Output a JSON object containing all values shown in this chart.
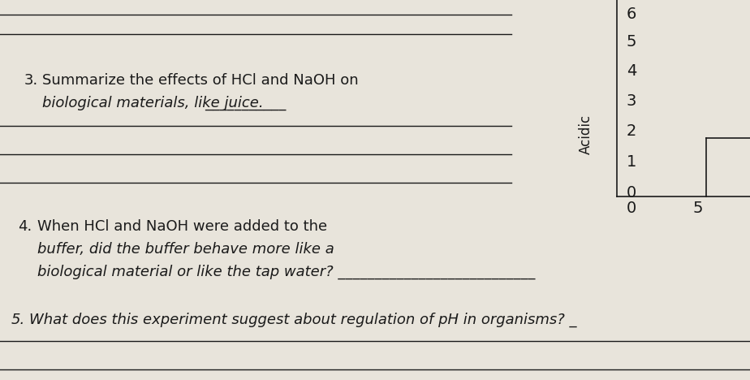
{
  "background_color": "#d6cfc2",
  "panel_color": "#e8e4db",
  "text_color": "#1a1a1a",
  "q3_number": "3.",
  "q3_text_line1": "Summarize the effects of HCl and NaOH on",
  "q3_text_line2_plain": "biological materials, like juice. ",
  "q3_text_line2_underline": "___________",
  "q4_number": "4.",
  "q4_text_line1": "When HCl and NaOH were added to the",
  "q4_text_line2": "buffer, did the buffer behave more like a",
  "q4_text_line3": "biological material or like the tap water? ___________________________",
  "q5_number": "5.",
  "q5_text": "What does this experiment suggest about regulation of pH in organisms? _",
  "table_numbers": [
    "6",
    "5",
    "4",
    "3",
    "2",
    "1",
    "0"
  ],
  "table_label": "Acidic",
  "table_bottom_x_labels": [
    "0",
    "5"
  ],
  "font_size_q": 13,
  "font_size_table": 14,
  "font_size_label": 12
}
